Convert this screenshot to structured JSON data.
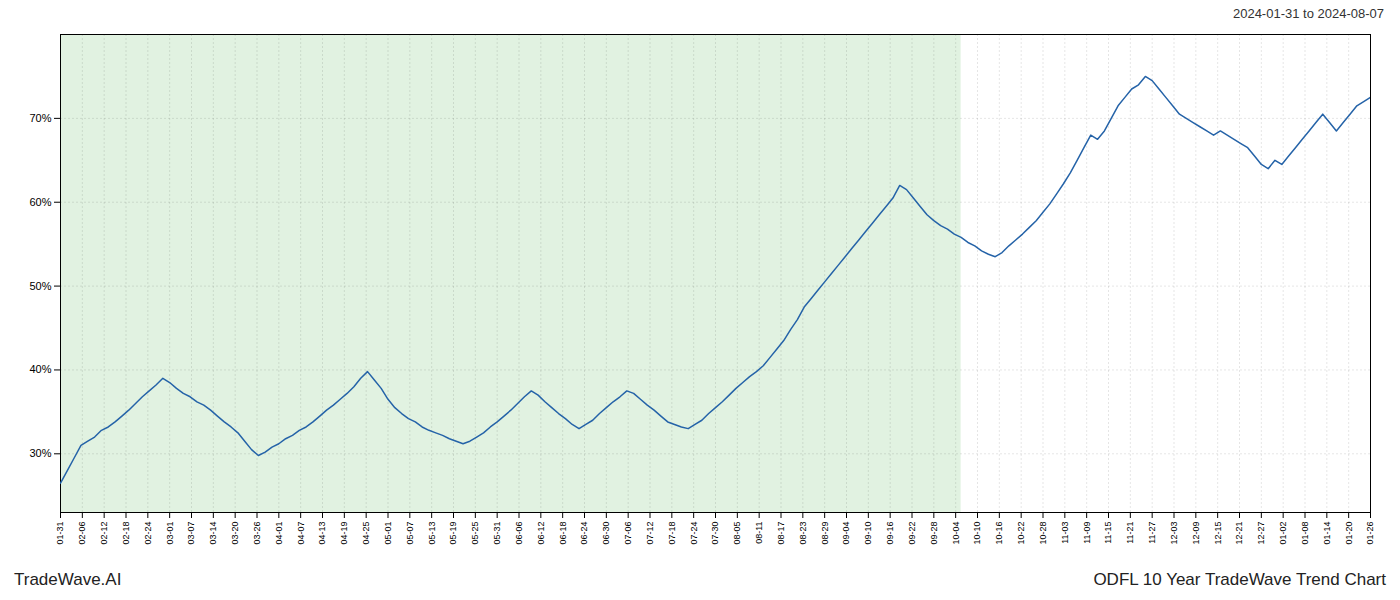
{
  "chart_data": {
    "type": "line",
    "title": "ODFL 10 Year TradeWave Trend Chart",
    "subtitle": "2024-01-31 to 2024-08-07",
    "annotations": [
      "TradeWave.AI"
    ],
    "color": "#2563a8",
    "grid": true,
    "xlim": [
      0,
      192
    ],
    "xticks": [
      {
        "value": 0,
        "label": "01-31"
      },
      {
        "value": 3.2,
        "label": "02-06"
      },
      {
        "value": 6.4,
        "label": "02-12"
      },
      {
        "value": 9.6,
        "label": "02-18"
      },
      {
        "value": 12.8,
        "label": "02-24"
      },
      {
        "value": 16,
        "label": "03-01"
      },
      {
        "value": 19.2,
        "label": "03-07"
      },
      {
        "value": 22.4,
        "label": "03-14"
      },
      {
        "value": 25.6,
        "label": "03-20"
      },
      {
        "value": 28.8,
        "label": "03-26"
      },
      {
        "value": 32,
        "label": "04-01"
      },
      {
        "value": 35.2,
        "label": "04-07"
      },
      {
        "value": 38.4,
        "label": "04-13"
      },
      {
        "value": 41.6,
        "label": "04-19"
      },
      {
        "value": 44.8,
        "label": "04-25"
      },
      {
        "value": 48,
        "label": "05-01"
      },
      {
        "value": 51.2,
        "label": "05-07"
      },
      {
        "value": 54.4,
        "label": "05-13"
      },
      {
        "value": 57.6,
        "label": "05-19"
      },
      {
        "value": 60.8,
        "label": "05-25"
      },
      {
        "value": 64,
        "label": "05-31"
      },
      {
        "value": 67.2,
        "label": "06-06"
      },
      {
        "value": 70.4,
        "label": "06-12"
      },
      {
        "value": 73.6,
        "label": "06-18"
      },
      {
        "value": 76.8,
        "label": "06-24"
      },
      {
        "value": 80,
        "label": "06-30"
      },
      {
        "value": 83.2,
        "label": "07-06"
      },
      {
        "value": 86.4,
        "label": "07-12"
      },
      {
        "value": 89.6,
        "label": "07-18"
      },
      {
        "value": 92.8,
        "label": "07-24"
      },
      {
        "value": 96,
        "label": "07-30"
      },
      {
        "value": 99.2,
        "label": "08-05"
      },
      {
        "value": 102.4,
        "label": "08-11"
      },
      {
        "value": 105.6,
        "label": "08-17"
      },
      {
        "value": 108.8,
        "label": "08-23"
      },
      {
        "value": 112,
        "label": "08-29"
      },
      {
        "value": 115.2,
        "label": "09-04"
      },
      {
        "value": 118.4,
        "label": "09-10"
      },
      {
        "value": 121.6,
        "label": "09-16"
      },
      {
        "value": 124.8,
        "label": "09-22"
      },
      {
        "value": 128,
        "label": "09-28"
      },
      {
        "value": 131.2,
        "label": "10-04"
      },
      {
        "value": 134.4,
        "label": "10-10"
      },
      {
        "value": 137.6,
        "label": "10-16"
      },
      {
        "value": 140.8,
        "label": "10-22"
      },
      {
        "value": 144,
        "label": "10-28"
      },
      {
        "value": 147.2,
        "label": "11-03"
      },
      {
        "value": 150.4,
        "label": "11-09"
      },
      {
        "value": 153.6,
        "label": "11-15"
      },
      {
        "value": 156.8,
        "label": "11-21"
      },
      {
        "value": 160,
        "label": "11-27"
      },
      {
        "value": 163.2,
        "label": "12-03"
      },
      {
        "value": 166.4,
        "label": "12-09"
      },
      {
        "value": 169.6,
        "label": "12-15"
      },
      {
        "value": 172.8,
        "label": "12-21"
      },
      {
        "value": 176,
        "label": "12-27"
      },
      {
        "value": 179.2,
        "label": "01-02"
      },
      {
        "value": 182.4,
        "label": "01-08"
      },
      {
        "value": 185.6,
        "label": "01-14"
      },
      {
        "value": 188.8,
        "label": "01-20"
      },
      {
        "value": 192,
        "label": "01-26"
      }
    ],
    "ylim": [
      23,
      80
    ],
    "yticks": [
      {
        "value": 30,
        "label": "30%"
      },
      {
        "value": 40,
        "label": "40%"
      },
      {
        "value": 50,
        "label": "50%"
      },
      {
        "value": 60,
        "label": "60%"
      },
      {
        "value": 70,
        "label": "70%"
      }
    ],
    "shaded_region": {
      "x_start": 0,
      "x_end": 132,
      "color": "#d4ecd4"
    },
    "values": [
      26.5,
      28.0,
      29.5,
      31.0,
      31.5,
      32.0,
      32.8,
      33.2,
      33.8,
      34.5,
      35.2,
      36.0,
      36.8,
      37.5,
      38.2,
      39.0,
      38.5,
      37.8,
      37.2,
      36.8,
      36.2,
      35.8,
      35.2,
      34.5,
      33.8,
      33.2,
      32.5,
      31.5,
      30.5,
      29.8,
      30.2,
      30.8,
      31.2,
      31.8,
      32.2,
      32.8,
      33.2,
      33.8,
      34.5,
      35.2,
      35.8,
      36.5,
      37.2,
      38.0,
      39.0,
      39.8,
      38.8,
      37.8,
      36.5,
      35.5,
      34.8,
      34.2,
      33.8,
      33.2,
      32.8,
      32.5,
      32.2,
      31.8,
      31.5,
      31.2,
      31.5,
      32.0,
      32.5,
      33.2,
      33.8,
      34.5,
      35.2,
      36.0,
      36.8,
      37.5,
      37.0,
      36.2,
      35.5,
      34.8,
      34.2,
      33.5,
      33.0,
      33.5,
      34.0,
      34.8,
      35.5,
      36.2,
      36.8,
      37.5,
      37.2,
      36.5,
      35.8,
      35.2,
      34.5,
      33.8,
      33.5,
      33.2,
      33.0,
      33.5,
      34.0,
      34.8,
      35.5,
      36.2,
      37.0,
      37.8,
      38.5,
      39.2,
      39.8,
      40.5,
      41.5,
      42.5,
      43.5,
      44.8,
      46.0,
      47.5,
      48.5,
      49.5,
      50.5,
      51.5,
      52.5,
      53.5,
      54.5,
      55.5,
      56.5,
      57.5,
      58.5,
      59.5,
      60.5,
      62.0,
      61.5,
      60.5,
      59.5,
      58.5,
      57.8,
      57.2,
      56.8,
      56.2,
      55.8,
      55.2,
      54.8,
      54.2,
      53.8,
      53.5,
      54.0,
      54.8,
      55.5,
      56.2,
      57.0,
      57.8,
      58.8,
      59.8,
      61.0,
      62.2,
      63.5,
      65.0,
      66.5,
      68.0,
      67.5,
      68.5,
      70.0,
      71.5,
      72.5,
      73.5,
      74.0,
      75.0,
      74.5,
      73.5,
      72.5,
      71.5,
      70.5,
      70.0,
      69.5,
      69.0,
      68.5,
      68.0,
      68.5,
      68.0,
      67.5,
      67.0,
      66.5,
      65.5,
      64.5,
      64.0,
      65.0,
      64.5,
      65.5,
      66.5,
      67.5,
      68.5,
      69.5,
      70.5,
      69.5,
      68.5,
      69.5,
      70.5,
      71.5,
      72.0,
      72.5
    ]
  }
}
